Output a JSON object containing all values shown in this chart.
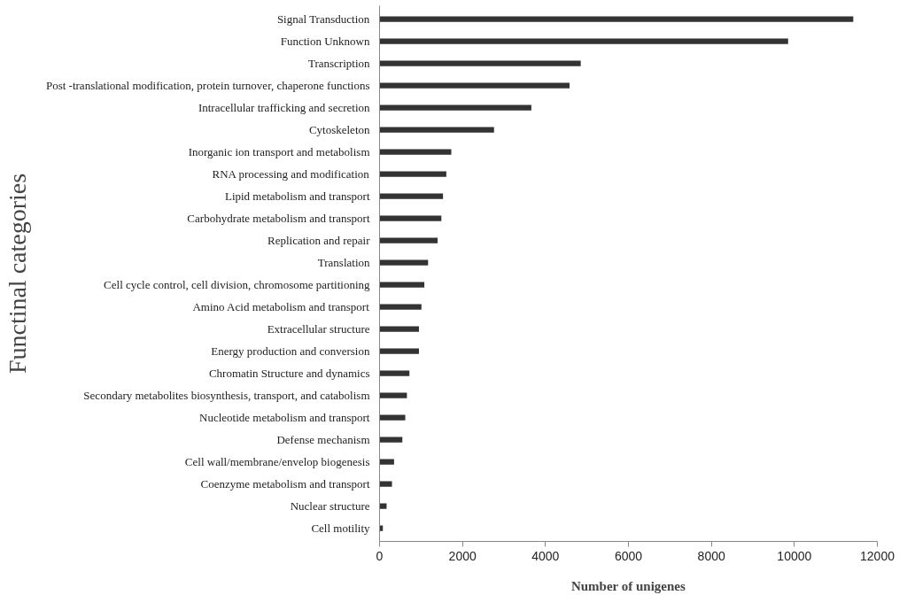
{
  "chart_data": {
    "type": "bar",
    "orientation": "horizontal",
    "xlabel": "Number of unigenes",
    "ylabel": "Functinal categories",
    "categories": [
      "Signal Transduction",
      "Function Unknown",
      "Transcription",
      "Post -translational modification, protein turnover, chaperone functions",
      "Intracellular trafficking and secretion",
      "Cytoskeleton",
      "Inorganic ion transport and metabolism",
      "RNA processing and modification",
      "Lipid metabolism and transport",
      "Carbohydrate metabolism and transport",
      "Replication and repair",
      "Translation",
      "Cell cycle control, cell division, chromosome partitioning",
      "Amino Acid metabolism and transport",
      "Extracellular structure",
      "Energy production and conversion",
      "Chromatin Structure and dynamics",
      "Secondary metabolites biosynthesis, transport, and catabolism",
      "Nucleotide metabolism and transport",
      "Defense mechanism",
      "Cell wall/membrane/envelop biogenesis",
      "Coenzyme metabolism and transport",
      "Nuclear structure",
      "Cell motility"
    ],
    "values": [
      11420,
      9850,
      4850,
      4580,
      3660,
      2760,
      1730,
      1610,
      1530,
      1490,
      1400,
      1170,
      1080,
      1010,
      950,
      950,
      720,
      660,
      620,
      550,
      350,
      300,
      170,
      80
    ],
    "color": "#333333",
    "xlim": [
      0,
      12000
    ],
    "xticks": [
      0,
      2000,
      4000,
      6000,
      8000,
      10000,
      12000
    ],
    "grid": false
  }
}
